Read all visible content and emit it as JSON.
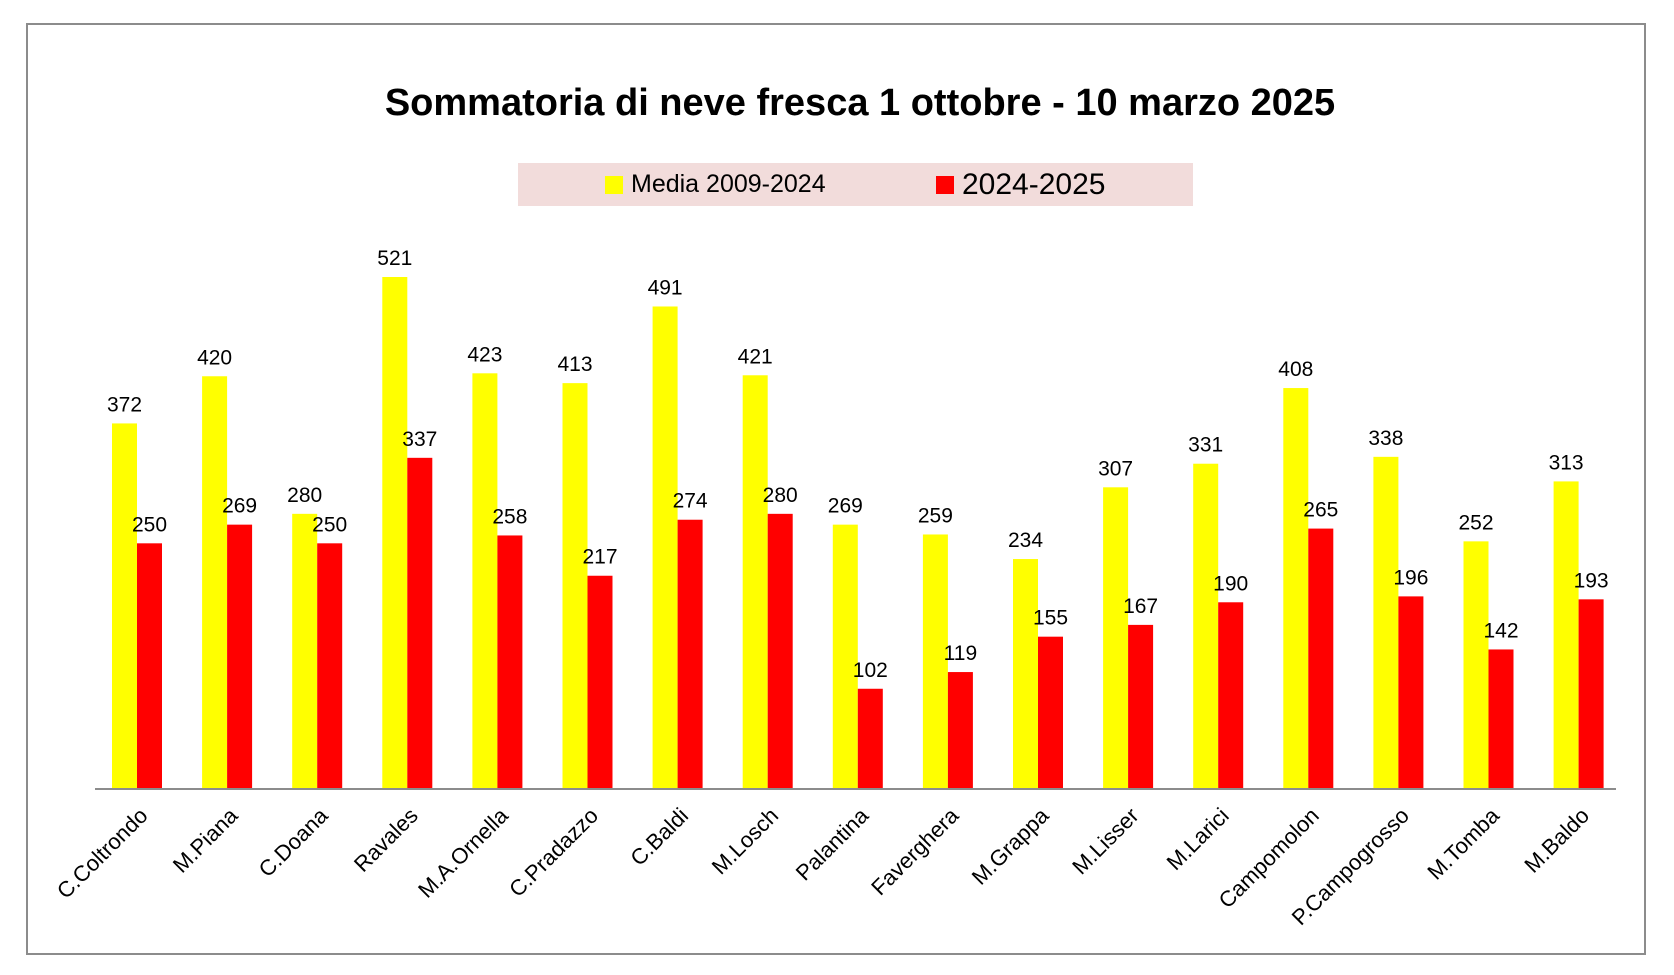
{
  "chart_data": {
    "type": "bar",
    "title": "Sommatoria di neve fresca 1 ottobre -  10 marzo 2025",
    "xlabel": "",
    "ylabel": "",
    "ylim": [
      0,
      600
    ],
    "grid": false,
    "legend_position": "top-center",
    "categories": [
      "C.Coltrondo",
      "M.Piana",
      "C.Doana",
      "Ravales",
      "M.A.Ornella",
      "C.Pradazzo",
      "C.Baldi",
      "M.Losch",
      "Palantina",
      "Faverghera",
      "M.Grappa",
      "M.Lisser",
      "M.Larici",
      "Campomolon",
      "P.Campogrosso",
      "M.Tomba",
      "M.Baldo"
    ],
    "series": [
      {
        "name": "Media 2009-2024",
        "color": "#ffff00",
        "values": [
          372,
          420,
          280,
          521,
          423,
          413,
          491,
          421,
          269,
          259,
          234,
          307,
          331,
          408,
          338,
          252,
          313
        ]
      },
      {
        "name": "2024-2025",
        "color": "#ff0000",
        "values": [
          250,
          269,
          250,
          337,
          258,
          217,
          274,
          280,
          102,
          119,
          155,
          167,
          190,
          265,
          196,
          142,
          193
        ]
      }
    ]
  }
}
